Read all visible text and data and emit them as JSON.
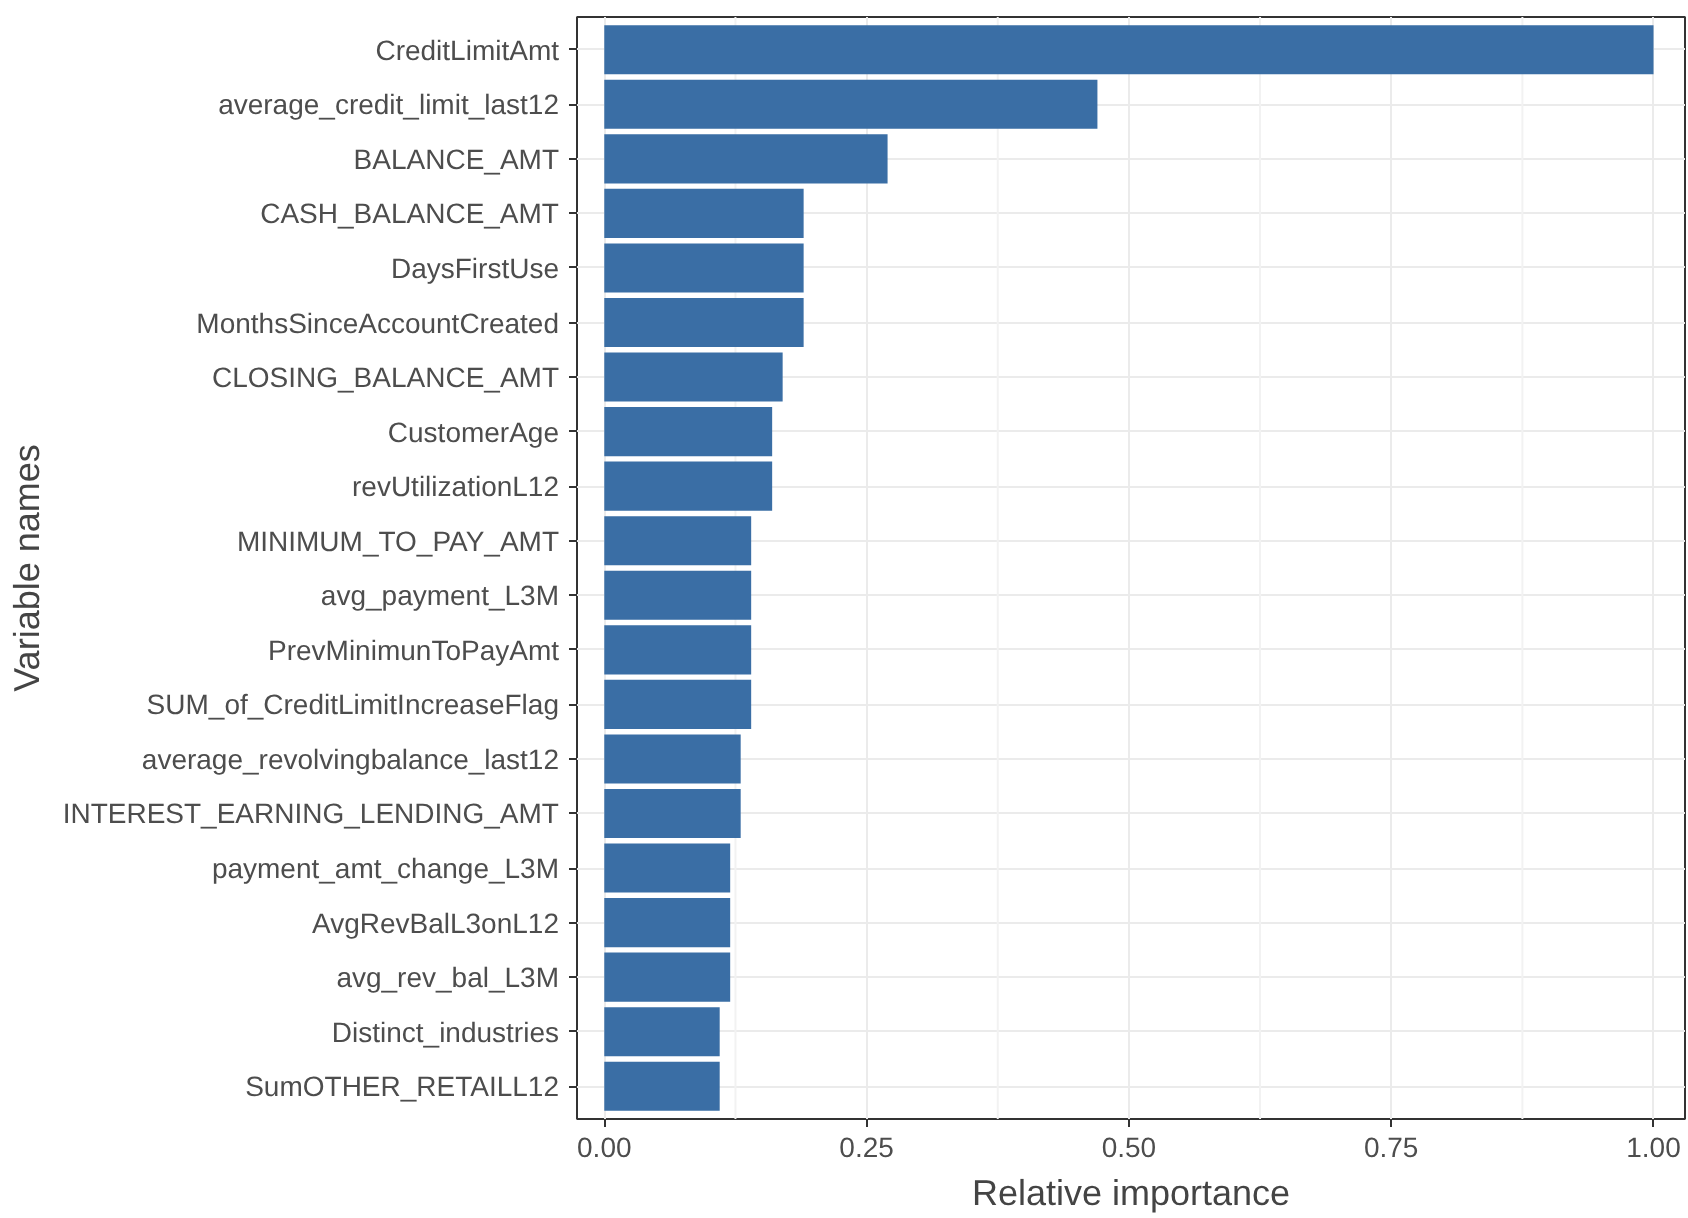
{
  "chart_data": {
    "type": "bar",
    "orientation": "horizontal",
    "xlabel": "Relative importance",
    "ylabel": "Variable names",
    "categories": [
      "CreditLimitAmt",
      "average_credit_limit_last12",
      "BALANCE_AMT",
      "CASH_BALANCE_AMT",
      "DaysFirstUse",
      "MonthsSinceAccountCreated",
      "CLOSING_BALANCE_AMT",
      "CustomerAge",
      "revUtilizationL12",
      "MINIMUM_TO_PAY_AMT",
      "avg_payment_L3M",
      "PrevMinimunToPayAmt",
      "SUM_of_CreditLimitIncreaseFlag",
      "average_revolvingbalance_last12",
      "INTEREST_EARNING_LENDING_AMT",
      "payment_amt_change_L3M",
      "AvgRevBalL3onL12",
      "avg_rev_bal_L3M",
      "Distinct_industries",
      "SumOTHER_RETAILL12"
    ],
    "values": [
      1.0,
      0.47,
      0.27,
      0.19,
      0.19,
      0.19,
      0.17,
      0.16,
      0.16,
      0.14,
      0.14,
      0.14,
      0.14,
      0.13,
      0.13,
      0.12,
      0.12,
      0.12,
      0.11,
      0.11
    ],
    "color": "#3a6ea5",
    "xlim": [
      -0.026,
      1.03
    ],
    "xticks": [
      {
        "value": 0,
        "label": "0.00"
      },
      {
        "value": 0.25,
        "label": "0.25"
      },
      {
        "value": 0.5,
        "label": "0.50"
      },
      {
        "value": 0.75,
        "label": "0.75"
      },
      {
        "value": 1,
        "label": "1.00"
      }
    ],
    "grid": true
  }
}
